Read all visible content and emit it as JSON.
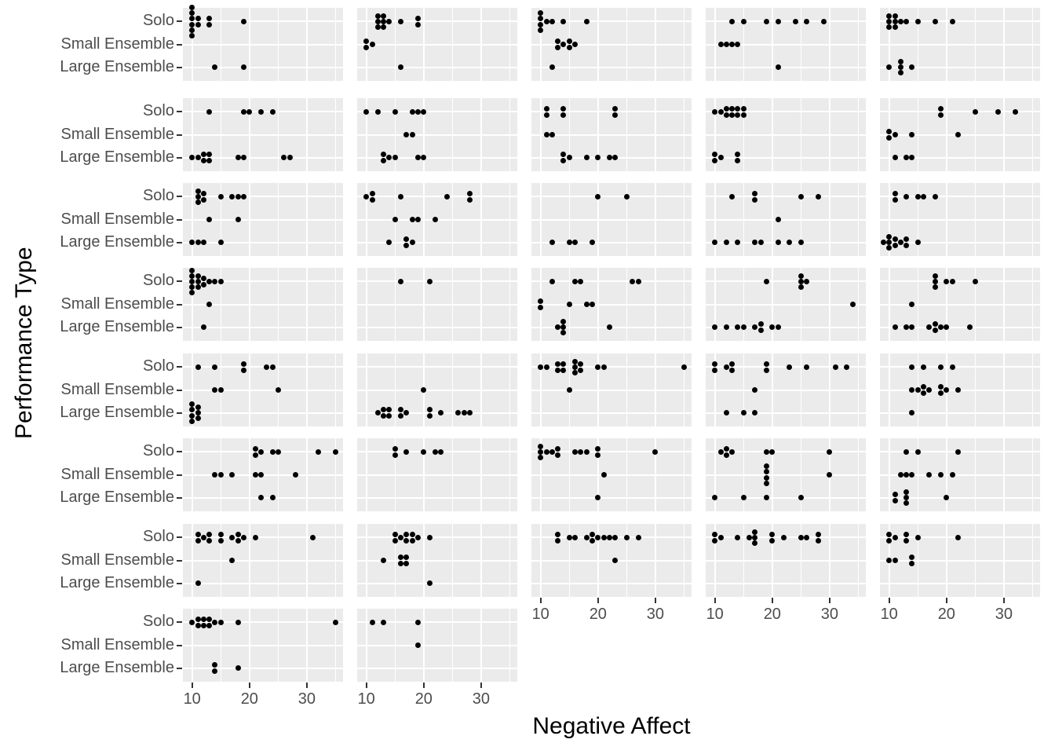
{
  "axes": {
    "x_title": "Negative Affect",
    "y_title": "Performance Type",
    "x_tick_labels": [
      "10",
      "20",
      "30"
    ],
    "y_categories": [
      "Solo",
      "Small Ensemble",
      "Large Ensemble"
    ]
  },
  "style": {
    "page_bg": "#FFFFFF",
    "panel_bg": "#EBEBEB",
    "grid_color": "#FFFFFF",
    "point_color": "#000000",
    "tick_text_color": "#4D4D4D",
    "axis_title_color": "#000000",
    "tick_mark_color": "#333333"
  },
  "chart_data": {
    "type": "scatter",
    "subtype": "faceted-dotplot",
    "title": "",
    "xlabel": "Negative Affect",
    "ylabel": "Performance Type",
    "x_tick_values": [
      10,
      20,
      30
    ],
    "x_minor_values": [
      15,
      25,
      35
    ],
    "x_domain": [
      8.4,
      36.3
    ],
    "grid": true,
    "legend": false,
    "categories": [
      "Solo",
      "Small Ensemble",
      "Large Ensemble"
    ],
    "facet_layout": {
      "nrow": 8,
      "ncol": 5,
      "n_facets": 37
    },
    "facets": [
      {
        "row": 1,
        "col": 1,
        "points": {
          "Solo": [
            10,
            10,
            10,
            10,
            10,
            10,
            11,
            11,
            13,
            13,
            19
          ],
          "Small Ensemble": [],
          "Large Ensemble": [
            14,
            19
          ]
        }
      },
      {
        "row": 1,
        "col": 2,
        "points": {
          "Solo": [
            12,
            12,
            12,
            13,
            13,
            13,
            14,
            16,
            19,
            19
          ],
          "Small Ensemble": [
            10,
            10,
            11
          ],
          "Large Ensemble": [
            16
          ]
        }
      },
      {
        "row": 1,
        "col": 3,
        "points": {
          "Solo": [
            10,
            10,
            10,
            10,
            11,
            12,
            14,
            18
          ],
          "Small Ensemble": [
            13,
            13,
            14,
            15,
            15,
            16
          ],
          "Large Ensemble": [
            12
          ]
        }
      },
      {
        "row": 1,
        "col": 4,
        "points": {
          "Solo": [
            13,
            15,
            19,
            21,
            24,
            26,
            29
          ],
          "Small Ensemble": [
            11,
            12,
            13,
            14
          ],
          "Large Ensemble": [
            21
          ]
        }
      },
      {
        "row": 1,
        "col": 5,
        "points": {
          "Solo": [
            10,
            10,
            10,
            11,
            11,
            11,
            12,
            13,
            15,
            18,
            21
          ],
          "Small Ensemble": [],
          "Large Ensemble": [
            10,
            12,
            12,
            12,
            14
          ]
        }
      },
      {
        "row": 2,
        "col": 1,
        "points": {
          "Solo": [
            13,
            19,
            20,
            22,
            24
          ],
          "Small Ensemble": [],
          "Large Ensemble": [
            10,
            11,
            12,
            12,
            13,
            13,
            18,
            19,
            26,
            27
          ]
        }
      },
      {
        "row": 2,
        "col": 2,
        "points": {
          "Solo": [
            10,
            12,
            15,
            18,
            19,
            20
          ],
          "Small Ensemble": [
            17,
            18
          ],
          "Large Ensemble": [
            13,
            13,
            14,
            15,
            19,
            20
          ]
        }
      },
      {
        "row": 2,
        "col": 3,
        "points": {
          "Solo": [
            11,
            11,
            14,
            14,
            23,
            23
          ],
          "Small Ensemble": [
            11,
            12
          ],
          "Large Ensemble": [
            14,
            14,
            15,
            18,
            20,
            22,
            23
          ]
        }
      },
      {
        "row": 2,
        "col": 4,
        "points": {
          "Solo": [
            10,
            11,
            12,
            12,
            13,
            13,
            14,
            14,
            15,
            15
          ],
          "Small Ensemble": [],
          "Large Ensemble": [
            10,
            10,
            11,
            14,
            14
          ]
        }
      },
      {
        "row": 2,
        "col": 5,
        "points": {
          "Solo": [
            19,
            19,
            25,
            29,
            32
          ],
          "Small Ensemble": [
            10,
            10,
            11,
            14,
            22
          ],
          "Large Ensemble": [
            11,
            13,
            14
          ]
        }
      },
      {
        "row": 3,
        "col": 1,
        "points": {
          "Solo": [
            11,
            11,
            11,
            12,
            12,
            15,
            17,
            18,
            19
          ],
          "Small Ensemble": [
            13,
            18
          ],
          "Large Ensemble": [
            10,
            11,
            12,
            15
          ]
        }
      },
      {
        "row": 3,
        "col": 2,
        "points": {
          "Solo": [
            10,
            11,
            11,
            16,
            24,
            28,
            28
          ],
          "Small Ensemble": [
            15,
            18,
            19,
            22
          ],
          "Large Ensemble": [
            14,
            17,
            17,
            18
          ]
        }
      },
      {
        "row": 3,
        "col": 3,
        "points": {
          "Solo": [
            20,
            25
          ],
          "Small Ensemble": [],
          "Large Ensemble": [
            12,
            15,
            16,
            19
          ]
        }
      },
      {
        "row": 3,
        "col": 4,
        "points": {
          "Solo": [
            13,
            17,
            17,
            25,
            28
          ],
          "Small Ensemble": [
            21
          ],
          "Large Ensemble": [
            10,
            12,
            14,
            17,
            18,
            21,
            23,
            25
          ]
        }
      },
      {
        "row": 3,
        "col": 5,
        "points": {
          "Solo": [
            11,
            11,
            13,
            15,
            16,
            18
          ],
          "Small Ensemble": [],
          "Large Ensemble": [
            9,
            10,
            10,
            10,
            11,
            11,
            12,
            13,
            13,
            15
          ]
        }
      },
      {
        "row": 4,
        "col": 1,
        "points": {
          "Solo": [
            10,
            10,
            10,
            10,
            10,
            11,
            11,
            11,
            12,
            12,
            13,
            14,
            15
          ],
          "Small Ensemble": [
            13
          ],
          "Large Ensemble": [
            12
          ]
        }
      },
      {
        "row": 4,
        "col": 2,
        "points": {
          "Solo": [
            16,
            21
          ],
          "Small Ensemble": [],
          "Large Ensemble": []
        }
      },
      {
        "row": 4,
        "col": 3,
        "points": {
          "Solo": [
            12,
            16,
            17,
            26,
            27
          ],
          "Small Ensemble": [
            10,
            10,
            15,
            18,
            19
          ],
          "Large Ensemble": [
            13,
            14,
            14,
            14,
            22
          ]
        }
      },
      {
        "row": 4,
        "col": 4,
        "points": {
          "Solo": [
            19,
            25,
            25,
            25,
            26
          ],
          "Small Ensemble": [
            34
          ],
          "Large Ensemble": [
            10,
            12,
            14,
            15,
            17,
            18,
            18,
            20,
            21
          ]
        }
      },
      {
        "row": 4,
        "col": 5,
        "points": {
          "Solo": [
            18,
            18,
            18,
            20,
            21,
            25
          ],
          "Small Ensemble": [
            14
          ],
          "Large Ensemble": [
            11,
            13,
            14,
            17,
            18,
            18,
            19,
            20,
            24
          ]
        }
      },
      {
        "row": 5,
        "col": 1,
        "points": {
          "Solo": [
            11,
            14,
            19,
            19,
            23,
            24
          ],
          "Small Ensemble": [
            14,
            15,
            25
          ],
          "Large Ensemble": [
            10,
            10,
            10,
            10,
            11,
            11,
            11
          ]
        }
      },
      {
        "row": 5,
        "col": 2,
        "points": {
          "Solo": [],
          "Small Ensemble": [
            20
          ],
          "Large Ensemble": [
            12,
            13,
            13,
            14,
            14,
            16,
            16,
            17,
            21,
            21,
            23,
            26,
            27,
            28
          ]
        }
      },
      {
        "row": 5,
        "col": 3,
        "points": {
          "Solo": [
            10,
            11,
            13,
            13,
            14,
            14,
            16,
            16,
            16,
            17,
            17,
            20,
            21,
            35
          ],
          "Small Ensemble": [
            15
          ],
          "Large Ensemble": []
        }
      },
      {
        "row": 5,
        "col": 4,
        "points": {
          "Solo": [
            10,
            10,
            12,
            13,
            13,
            19,
            19,
            23,
            26,
            31,
            33
          ],
          "Small Ensemble": [
            17
          ],
          "Large Ensemble": [
            12,
            15,
            17
          ]
        }
      },
      {
        "row": 5,
        "col": 5,
        "points": {
          "Solo": [
            14,
            16,
            19,
            21
          ],
          "Small Ensemble": [
            14,
            15,
            16,
            16,
            17,
            19,
            19,
            20,
            22
          ],
          "Large Ensemble": [
            14
          ]
        }
      },
      {
        "row": 6,
        "col": 1,
        "points": {
          "Solo": [
            21,
            21,
            22,
            24,
            25,
            32,
            35
          ],
          "Small Ensemble": [
            14,
            15,
            17,
            21,
            22,
            28
          ],
          "Large Ensemble": [
            22,
            24
          ]
        }
      },
      {
        "row": 6,
        "col": 2,
        "points": {
          "Solo": [
            15,
            15,
            17,
            20,
            22,
            23
          ],
          "Small Ensemble": [],
          "Large Ensemble": []
        }
      },
      {
        "row": 6,
        "col": 3,
        "points": {
          "Solo": [
            10,
            10,
            10,
            11,
            12,
            13,
            13,
            16,
            17,
            18,
            20,
            20,
            30
          ],
          "Small Ensemble": [
            21
          ],
          "Large Ensemble": [
            20
          ]
        }
      },
      {
        "row": 6,
        "col": 4,
        "points": {
          "Solo": [
            11,
            12,
            12,
            13,
            19,
            20,
            30
          ],
          "Small Ensemble": [
            19,
            19,
            19,
            19,
            30
          ],
          "Large Ensemble": [
            10,
            15,
            19,
            25
          ]
        }
      },
      {
        "row": 6,
        "col": 5,
        "points": {
          "Solo": [
            13,
            15,
            22
          ],
          "Small Ensemble": [
            12,
            13,
            14,
            17,
            19,
            21
          ],
          "Large Ensemble": [
            11,
            11,
            13,
            13,
            13,
            20
          ]
        }
      },
      {
        "row": 7,
        "col": 1,
        "points": {
          "Solo": [
            11,
            11,
            12,
            13,
            13,
            15,
            15,
            17,
            18,
            18,
            19,
            21,
            31
          ],
          "Small Ensemble": [
            17
          ],
          "Large Ensemble": [
            11
          ]
        }
      },
      {
        "row": 7,
        "col": 2,
        "points": {
          "Solo": [
            15,
            15,
            16,
            17,
            17,
            18,
            18,
            19,
            21
          ],
          "Small Ensemble": [
            13,
            16,
            16,
            17,
            17
          ],
          "Large Ensemble": [
            21
          ]
        }
      },
      {
        "row": 7,
        "col": 3,
        "points": {
          "Solo": [
            13,
            13,
            15,
            16,
            18,
            19,
            19,
            20,
            21,
            22,
            23,
            25,
            27
          ],
          "Small Ensemble": [
            23
          ],
          "Large Ensemble": []
        }
      },
      {
        "row": 7,
        "col": 4,
        "points": {
          "Solo": [
            10,
            10,
            11,
            14,
            16,
            17,
            17,
            17,
            20,
            20,
            22,
            25,
            26,
            28,
            28
          ],
          "Small Ensemble": [],
          "Large Ensemble": []
        }
      },
      {
        "row": 7,
        "col": 5,
        "points": {
          "Solo": [
            10,
            10,
            11,
            13,
            13,
            15,
            22
          ],
          "Small Ensemble": [
            10,
            11,
            14,
            14
          ],
          "Large Ensemble": []
        }
      },
      {
        "row": 8,
        "col": 1,
        "points": {
          "Solo": [
            10,
            11,
            11,
            12,
            12,
            13,
            13,
            14,
            15,
            18,
            35
          ],
          "Small Ensemble": [],
          "Large Ensemble": [
            14,
            14,
            18
          ]
        }
      },
      {
        "row": 8,
        "col": 2,
        "points": {
          "Solo": [
            11,
            13,
            19
          ],
          "Small Ensemble": [
            19
          ],
          "Large Ensemble": []
        }
      }
    ]
  }
}
